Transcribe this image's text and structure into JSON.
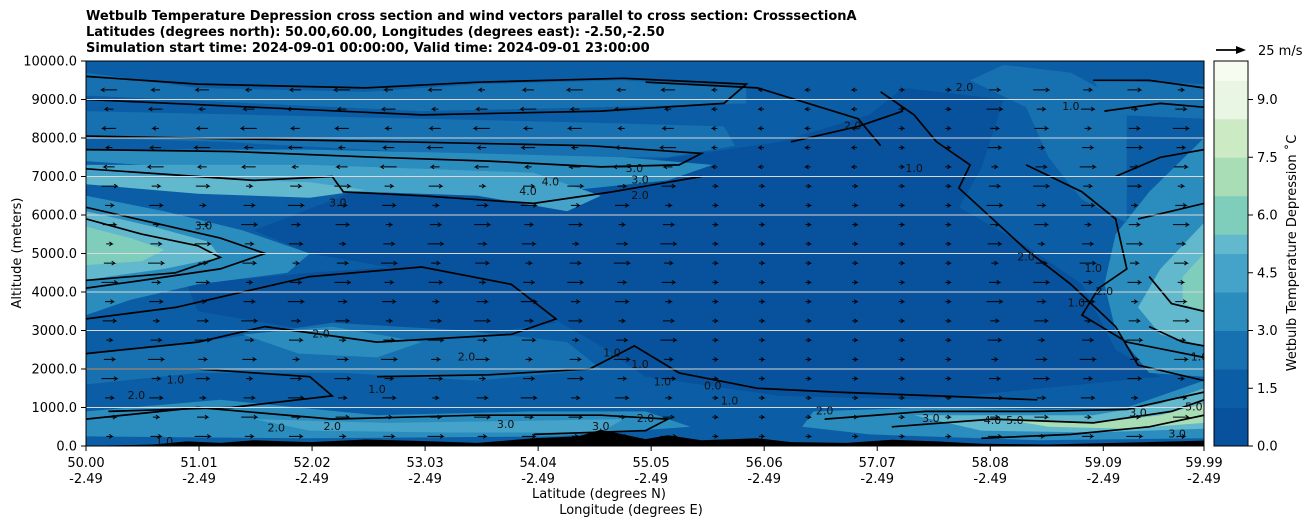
{
  "chart_data": {
    "type": "heatmap",
    "title_lines": [
      "Wetbulb Temperature Depression cross section and wind vectors parallel to cross section: CrosssectionA",
      "Latitudes (degrees north): 50.00,60.00, Longitudes (degrees east): -2.50,-2.50",
      "Simulation start time: 2024-09-01 00:00:00, Valid time: 2024-09-01 23:00:00"
    ],
    "ylabel": "Altitude (meters)",
    "xlabel_line1": "Latitude (degrees N)",
    "xlabel_line2": "Longitude (degrees E)",
    "x_range": [
      50.0,
      59.99
    ],
    "y_range": [
      0,
      10000
    ],
    "y_ticks": [
      "0.0",
      "1000.0",
      "2000.0",
      "3000.0",
      "4000.0",
      "5000.0",
      "6000.0",
      "7000.0",
      "8000.0",
      "9000.0",
      "10000.0"
    ],
    "y_tick_values": [
      0,
      1000,
      2000,
      3000,
      4000,
      5000,
      6000,
      7000,
      8000,
      9000,
      10000
    ],
    "x_ticks": [
      {
        "lat": "50.00",
        "lon": "-2.49",
        "value": 50.0
      },
      {
        "lat": "51.01",
        "lon": "-2.49",
        "value": 51.01
      },
      {
        "lat": "52.02",
        "lon": "-2.49",
        "value": 52.02
      },
      {
        "lat": "53.03",
        "lon": "-2.49",
        "value": 53.03
      },
      {
        "lat": "54.04",
        "lon": "-2.49",
        "value": 54.04
      },
      {
        "lat": "55.05",
        "lon": "-2.49",
        "value": 55.05
      },
      {
        "lat": "56.06",
        "lon": "-2.49",
        "value": 56.06
      },
      {
        "lat": "57.07",
        "lon": "-2.49",
        "value": 57.07
      },
      {
        "lat": "58.08",
        "lon": "-2.49",
        "value": 58.08
      },
      {
        "lat": "59.09",
        "lon": "-2.49",
        "value": 59.09
      },
      {
        "lat": "59.99",
        "lon": "-2.49",
        "value": 59.99
      }
    ],
    "colorbar": {
      "label": "Wetbulb Temperature Depression ˚C",
      "range": [
        0,
        10
      ],
      "ticks": [
        "0.0",
        "1.5",
        "3.0",
        "4.5",
        "6.0",
        "7.5",
        "9.0"
      ],
      "tick_values": [
        0,
        1.5,
        3.0,
        4.5,
        6.0,
        7.5,
        9.0
      ],
      "colormap": [
        "#08519c",
        "#0b5ea5",
        "#1770b0",
        "#2b8cbe",
        "#45a3c9",
        "#62b8cc",
        "#7fcdbb",
        "#a8ddb5",
        "#ccebc5",
        "#e8f6e3",
        "#f7fcf0"
      ]
    },
    "wind_key": "25 m/s",
    "grid_y": true,
    "contour_labels": [
      {
        "text": "3.0",
        "x": 54.9,
        "y": 7200
      },
      {
        "text": "3.0",
        "x": 54.95,
        "y": 6900
      },
      {
        "text": "2.0",
        "x": 54.95,
        "y": 6500
      },
      {
        "text": "4.0",
        "x": 53.95,
        "y": 6600
      },
      {
        "text": "4.0",
        "x": 54.15,
        "y": 6850
      },
      {
        "text": "3.0",
        "x": 52.25,
        "y": 6300
      },
      {
        "text": "3.0",
        "x": 51.05,
        "y": 5700
      },
      {
        "text": "2.0",
        "x": 57.85,
        "y": 9300
      },
      {
        "text": "1.0",
        "x": 58.8,
        "y": 8800
      },
      {
        "text": "2.0",
        "x": 56.85,
        "y": 8300
      },
      {
        "text": "1.0",
        "x": 57.4,
        "y": 7200
      },
      {
        "text": "2.0",
        "x": 58.4,
        "y": 4900
      },
      {
        "text": "1.0",
        "x": 59.0,
        "y": 4600
      },
      {
        "text": "2.0",
        "x": 59.1,
        "y": 4000
      },
      {
        "text": "1.0",
        "x": 58.85,
        "y": 3700
      },
      {
        "text": "1.0",
        "x": 59.95,
        "y": 2300
      },
      {
        "text": "2.0",
        "x": 52.1,
        "y": 2900
      },
      {
        "text": "2.0",
        "x": 53.4,
        "y": 2300
      },
      {
        "text": "1.0",
        "x": 50.8,
        "y": 1700
      },
      {
        "text": "2.0",
        "x": 50.45,
        "y": 1300
      },
      {
        "text": "1.0",
        "x": 52.6,
        "y": 1450
      },
      {
        "text": "1.0",
        "x": 54.7,
        "y": 2400
      },
      {
        "text": "1.0",
        "x": 54.95,
        "y": 2100
      },
      {
        "text": "1.0",
        "x": 55.15,
        "y": 1650
      },
      {
        "text": "0.0",
        "x": 55.6,
        "y": 1550
      },
      {
        "text": "1.0",
        "x": 55.75,
        "y": 1150
      },
      {
        "text": "2.0",
        "x": 56.6,
        "y": 900
      },
      {
        "text": "3.0",
        "x": 57.55,
        "y": 700
      },
      {
        "text": "4.0",
        "x": 58.1,
        "y": 650
      },
      {
        "text": "5.0",
        "x": 58.3,
        "y": 650
      },
      {
        "text": "3.0",
        "x": 59.4,
        "y": 850
      },
      {
        "text": "5.0",
        "x": 59.9,
        "y": 1000
      },
      {
        "text": "3.0",
        "x": 59.75,
        "y": 300
      },
      {
        "text": "2.0",
        "x": 55.0,
        "y": 700
      },
      {
        "text": "3.0",
        "x": 54.6,
        "y": 500
      },
      {
        "text": "3.0",
        "x": 53.75,
        "y": 550
      },
      {
        "text": "2.0",
        "x": 51.7,
        "y": 450
      },
      {
        "text": "2.0",
        "x": 52.2,
        "y": 500
      },
      {
        "text": "1.0",
        "x": 50.7,
        "y": 100
      }
    ]
  }
}
